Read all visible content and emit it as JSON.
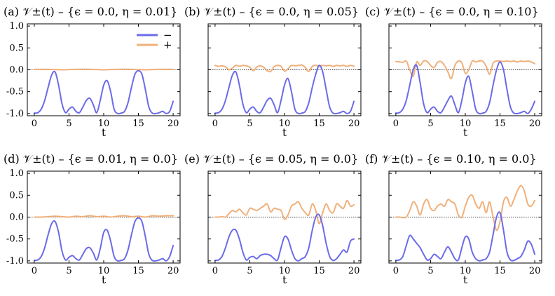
{
  "figure": {
    "colors": {
      "minus": "#6b6bea",
      "plus": "#f0b07a",
      "zero_line": "#000000"
    },
    "legend": {
      "panel": 0,
      "location": "top-right",
      "entries": [
        "−",
        "+"
      ]
    }
  },
  "chart_data": [
    {
      "type": "line",
      "panel_label": "(a)",
      "title": "(a) 𝒱±(t)  –  {ϵ = 0.0, η = 0.01}",
      "xlabel": "t",
      "xlim": [
        -1,
        21
      ],
      "ylim": [
        -1.05,
        1.05
      ],
      "xticks": [
        "0",
        "5",
        "10",
        "15",
        "20"
      ],
      "yticks": [
        "1.0",
        "0.5",
        "0.0",
        "-0.5",
        "-1.0"
      ],
      "grid": false,
      "reference_line": 0,
      "series": [
        {
          "name": "−",
          "x": [
            0,
            0.5,
            1,
            1.5,
            2,
            2.5,
            3,
            3.5,
            4,
            4.5,
            5,
            5.5,
            6,
            6.5,
            7,
            7.5,
            8,
            8.5,
            9,
            9.5,
            10,
            10.5,
            11,
            11.5,
            12,
            12.5,
            13,
            13.5,
            14,
            14.5,
            15,
            15.5,
            16,
            16.5,
            17,
            17.5,
            18,
            18.5,
            19,
            19.5,
            20
          ],
          "values": [
            -0.99,
            -0.98,
            -0.9,
            -0.7,
            -0.4,
            -0.12,
            -0.05,
            -0.35,
            -0.78,
            -0.98,
            -0.9,
            -0.85,
            -0.95,
            -0.98,
            -0.85,
            -0.7,
            -0.65,
            -0.8,
            -0.98,
            -0.7,
            -0.35,
            -0.25,
            -0.5,
            -0.9,
            -1.0,
            -0.99,
            -0.95,
            -0.75,
            -0.4,
            -0.1,
            -0.02,
            -0.1,
            -0.45,
            -0.85,
            -0.99,
            -1.0,
            -0.98,
            -0.95,
            -1.0,
            -0.95,
            -0.72
          ]
        },
        {
          "name": "+",
          "x": [
            0,
            2,
            4,
            6,
            8,
            10,
            12,
            14,
            16,
            18,
            20
          ],
          "values": [
            0.01,
            0.01,
            0.0,
            0.01,
            0.01,
            0.0,
            0.01,
            0.01,
            0.0,
            0.01,
            0.01
          ]
        }
      ]
    },
    {
      "type": "line",
      "panel_label": "(b)",
      "title": "(b) 𝒱±(t)  –  {ϵ = 0.0, η = 0.05}",
      "xlabel": "t",
      "xlim": [
        -1,
        21
      ],
      "ylim": [
        -1.05,
        1.05
      ],
      "xticks": [
        "0",
        "5",
        "10",
        "15",
        "20"
      ],
      "yticks": [],
      "grid": false,
      "reference_line": 0,
      "series": [
        {
          "name": "−",
          "x": [
            0,
            0.5,
            1,
            1.5,
            2,
            2.5,
            3,
            3.5,
            4,
            4.5,
            5,
            5.5,
            6,
            6.5,
            7,
            7.5,
            8,
            8.5,
            9,
            9.5,
            10,
            10.5,
            11,
            11.5,
            12,
            12.5,
            13,
            13.5,
            14,
            14.5,
            15,
            15.5,
            16,
            16.5,
            17,
            17.5,
            18,
            18.5,
            19,
            19.5,
            20
          ],
          "values": [
            -0.99,
            -0.98,
            -0.9,
            -0.7,
            -0.4,
            -0.12,
            -0.05,
            -0.35,
            -0.78,
            -0.98,
            -0.9,
            -0.85,
            -0.95,
            -0.98,
            -0.85,
            -0.7,
            -0.65,
            -0.8,
            -0.98,
            -0.7,
            -0.35,
            -0.2,
            -0.5,
            -0.9,
            -1.0,
            -0.99,
            -0.95,
            -0.75,
            -0.4,
            -0.1,
            0.1,
            -0.05,
            -0.45,
            -0.85,
            -0.99,
            -1.0,
            -0.98,
            -0.95,
            -1.0,
            -0.95,
            -0.72
          ]
        },
        {
          "name": "+",
          "x": [
            0,
            0.5,
            1,
            1.5,
            2,
            2.5,
            3,
            3.5,
            4,
            4.5,
            5,
            5.5,
            6,
            6.5,
            7,
            7.5,
            8,
            8.5,
            9,
            9.5,
            10,
            10.5,
            11,
            11.5,
            12,
            12.5,
            13,
            13.5,
            14,
            14.5,
            15,
            15.5,
            16,
            16.5,
            17,
            17.5,
            18,
            18.5,
            19,
            19.5,
            20
          ],
          "values": [
            0.1,
            0.08,
            0.09,
            0.07,
            0.0,
            0.04,
            0.1,
            0.08,
            0.1,
            0.09,
            0.06,
            -0.02,
            0.06,
            0.09,
            0.06,
            -0.02,
            -0.04,
            0.07,
            0.1,
            0.08,
            -0.03,
            0.02,
            0.1,
            0.09,
            0.1,
            0.11,
            0.05,
            -0.04,
            0.08,
            0.1,
            0.09,
            0.1,
            0.09,
            0.1,
            0.08,
            0.1,
            0.09,
            0.1,
            0.08,
            0.1,
            0.08
          ]
        }
      ]
    },
    {
      "type": "line",
      "panel_label": "(c)",
      "title": "(c) 𝒱±(t)  –  {ϵ = 0.0, η = 0.10}",
      "xlabel": "t",
      "xlim": [
        -1,
        21
      ],
      "ylim": [
        -1.05,
        1.05
      ],
      "xticks": [
        "0",
        "5",
        "10",
        "15",
        "20"
      ],
      "yticks": [],
      "grid": false,
      "reference_line": 0,
      "series": [
        {
          "name": "−",
          "x": [
            0,
            0.5,
            1,
            1.5,
            2,
            2.5,
            3,
            3.5,
            4,
            4.5,
            5,
            5.5,
            6,
            6.5,
            7,
            7.5,
            8,
            8.5,
            9,
            9.5,
            10,
            10.5,
            11,
            11.5,
            12,
            12.5,
            13,
            13.5,
            14,
            14.5,
            15,
            15.5,
            16,
            16.5,
            17,
            17.5,
            18,
            18.5,
            19,
            19.5,
            20
          ],
          "values": [
            -0.99,
            -0.98,
            -0.9,
            -0.7,
            -0.35,
            0.0,
            0.1,
            -0.3,
            -0.78,
            -0.98,
            -0.9,
            -0.85,
            -0.95,
            -0.98,
            -0.85,
            -0.7,
            -0.6,
            -0.8,
            -0.98,
            -0.7,
            -0.3,
            -0.15,
            -0.5,
            -0.9,
            -1.0,
            -0.99,
            -0.95,
            -0.75,
            -0.35,
            0.0,
            0.18,
            0.0,
            -0.45,
            -0.85,
            -0.99,
            -1.0,
            -0.98,
            -0.95,
            -1.0,
            -0.9,
            -0.72
          ]
        },
        {
          "name": "+",
          "x": [
            0,
            0.5,
            1,
            1.5,
            2,
            2.5,
            3,
            3.5,
            4,
            4.5,
            5,
            5.5,
            6,
            6.5,
            7,
            7.5,
            8,
            8.5,
            9,
            9.5,
            10,
            10.5,
            11,
            11.5,
            12,
            12.5,
            13,
            13.5,
            14,
            14.5,
            15,
            15.5,
            16,
            16.5,
            17,
            17.5,
            18,
            18.5,
            19,
            19.5,
            20
          ],
          "values": [
            0.19,
            0.18,
            0.17,
            0.2,
            0.0,
            -0.15,
            0.18,
            0.1,
            0.2,
            0.19,
            0.1,
            0.05,
            0.17,
            0.19,
            0.1,
            -0.05,
            -0.2,
            0.1,
            0.2,
            0.16,
            -0.08,
            0.0,
            0.2,
            0.18,
            0.2,
            0.2,
            0.08,
            -0.1,
            0.15,
            0.2,
            0.2,
            0.19,
            0.2,
            0.19,
            0.2,
            0.18,
            0.2,
            0.19,
            0.2,
            0.18,
            0.14
          ]
        }
      ]
    },
    {
      "type": "line",
      "panel_label": "(d)",
      "title": "(d) 𝒱±(t)  –  {ϵ = 0.01, η = 0.0}",
      "xlabel": "t",
      "xlim": [
        -1,
        21
      ],
      "ylim": [
        -1.05,
        1.05
      ],
      "xticks": [
        "0",
        "5",
        "10",
        "15",
        "20"
      ],
      "yticks": [
        "1.0",
        "0.5",
        "0.0",
        "-0.5",
        "-1.0"
      ],
      "grid": false,
      "reference_line": 0,
      "series": [
        {
          "name": "−",
          "x": [
            0,
            0.5,
            1,
            1.5,
            2,
            2.5,
            3,
            3.5,
            4,
            4.5,
            5,
            5.5,
            6,
            6.5,
            7,
            7.5,
            8,
            8.5,
            9,
            9.5,
            10,
            10.5,
            11,
            11.5,
            12,
            12.5,
            13,
            13.5,
            14,
            14.5,
            15,
            15.5,
            16,
            16.5,
            17,
            17.5,
            18,
            18.5,
            19,
            19.5,
            20
          ],
          "values": [
            -0.99,
            -0.98,
            -0.9,
            -0.7,
            -0.4,
            -0.15,
            -0.1,
            -0.35,
            -0.78,
            -0.98,
            -0.92,
            -0.88,
            -0.95,
            -0.98,
            -0.85,
            -0.72,
            -0.7,
            -0.82,
            -0.98,
            -0.72,
            -0.35,
            -0.3,
            -0.55,
            -0.9,
            -1.0,
            -0.99,
            -0.95,
            -0.75,
            -0.4,
            -0.1,
            -0.02,
            -0.1,
            -0.45,
            -0.85,
            -0.99,
            -1.0,
            -0.98,
            -0.95,
            -1.0,
            -0.9,
            -0.65
          ]
        },
        {
          "name": "+",
          "x": [
            0,
            1,
            2,
            3,
            4,
            5,
            6,
            7,
            8,
            9,
            10,
            11,
            12,
            13,
            14,
            15,
            16,
            17,
            18,
            19,
            20
          ],
          "values": [
            0.0,
            0.0,
            0.01,
            0.02,
            0.01,
            0.0,
            0.02,
            0.01,
            0.03,
            0.01,
            0.02,
            0.0,
            0.02,
            0.03,
            0.01,
            0.02,
            0.0,
            0.03,
            0.02,
            0.03,
            0.03
          ]
        }
      ]
    },
    {
      "type": "line",
      "panel_label": "(e)",
      "title": "(e) 𝒱±(t)  –  {ϵ = 0.05, η = 0.0}",
      "xlabel": "t",
      "xlim": [
        -1,
        21
      ],
      "ylim": [
        -1.05,
        1.05
      ],
      "xticks": [
        "0",
        "5",
        "10",
        "15",
        "20"
      ],
      "yticks": [],
      "grid": false,
      "reference_line": 0,
      "series": [
        {
          "name": "−",
          "x": [
            0,
            0.5,
            1,
            1.5,
            2,
            2.5,
            3,
            3.5,
            4,
            4.5,
            5,
            5.5,
            6,
            6.5,
            7,
            7.5,
            8,
            8.5,
            9,
            9.5,
            10,
            10.5,
            11,
            11.5,
            12,
            12.5,
            13,
            13.5,
            14,
            14.5,
            15,
            15.5,
            16,
            16.5,
            17,
            17.5,
            18,
            18.5,
            19,
            19.5,
            20
          ],
          "values": [
            -0.99,
            -0.98,
            -0.9,
            -0.7,
            -0.45,
            -0.3,
            -0.3,
            -0.5,
            -0.8,
            -0.98,
            -0.92,
            -0.9,
            -0.95,
            -0.88,
            -0.85,
            -0.85,
            -0.88,
            -0.95,
            -0.98,
            -0.7,
            -0.45,
            -0.5,
            -0.75,
            -0.95,
            -1.0,
            -0.95,
            -0.9,
            -0.7,
            -0.3,
            0.0,
            0.05,
            -0.2,
            -0.6,
            -0.9,
            -0.99,
            -0.95,
            -0.85,
            -0.75,
            -0.8,
            -0.55,
            -0.5
          ]
        },
        {
          "name": "+",
          "x": [
            0,
            0.5,
            1,
            1.5,
            2,
            2.5,
            3,
            3.5,
            4,
            4.5,
            5,
            5.5,
            6,
            6.5,
            7,
            7.5,
            8,
            8.5,
            9,
            9.5,
            10,
            10.5,
            11,
            11.5,
            12,
            12.5,
            13,
            13.5,
            14,
            14.5,
            15,
            15.5,
            16,
            16.5,
            17,
            17.5,
            18,
            18.5,
            19,
            19.5,
            20
          ],
          "values": [
            0.0,
            0.0,
            0.01,
            0.0,
            0.08,
            0.15,
            0.12,
            0.18,
            0.1,
            0.05,
            0.2,
            0.18,
            0.15,
            0.2,
            0.25,
            0.3,
            0.12,
            0.2,
            0.18,
            0.15,
            -0.05,
            0.05,
            0.25,
            0.3,
            0.35,
            0.2,
            0.1,
            0.05,
            0.3,
            0.15,
            -0.15,
            0.1,
            0.3,
            0.15,
            0.1,
            0.3,
            0.25,
            0.2,
            0.38,
            0.25,
            0.28
          ]
        }
      ]
    },
    {
      "type": "line",
      "panel_label": "(f)",
      "title": "(f) 𝒱±(t)  –  {ϵ = 0.10, η = 0.0}",
      "xlabel": "t",
      "xlim": [
        -1,
        21
      ],
      "ylim": [
        -1.05,
        1.05
      ],
      "xticks": [
        "0",
        "5",
        "10",
        "15",
        "20"
      ],
      "yticks": [],
      "grid": false,
      "reference_line": 0,
      "series": [
        {
          "name": "−",
          "x": [
            0,
            0.5,
            1,
            1.5,
            2,
            2.5,
            3,
            3.5,
            4,
            4.5,
            5,
            5.5,
            6,
            6.5,
            7,
            7.5,
            8,
            8.5,
            9,
            9.5,
            10,
            10.5,
            11,
            11.5,
            12,
            12.5,
            13,
            13.5,
            14,
            14.5,
            15,
            15.5,
            16,
            16.5,
            17,
            17.5,
            18,
            18.5,
            19,
            19.5,
            20
          ],
          "values": [
            -0.99,
            -0.98,
            -0.9,
            -0.65,
            -0.42,
            -0.5,
            -0.6,
            -0.7,
            -0.85,
            -0.98,
            -0.95,
            -0.85,
            -0.9,
            -0.95,
            -0.8,
            -0.68,
            -0.8,
            -0.95,
            -0.98,
            -0.7,
            -0.45,
            -0.5,
            -0.8,
            -0.95,
            -1.0,
            -0.98,
            -0.95,
            -0.8,
            -0.4,
            0.0,
            0.1,
            -0.3,
            -0.8,
            -0.98,
            -0.99,
            -0.95,
            -0.9,
            -0.75,
            -0.55,
            -0.62,
            -0.85
          ]
        },
        {
          "name": "+",
          "x": [
            0,
            0.5,
            1,
            1.5,
            2,
            2.5,
            3,
            3.5,
            4,
            4.5,
            5,
            5.5,
            6,
            6.5,
            7,
            7.5,
            8,
            8.5,
            9,
            9.5,
            10,
            10.5,
            11,
            11.5,
            12,
            12.5,
            13,
            13.5,
            14,
            14.5,
            15,
            15.5,
            16,
            16.5,
            17,
            17.5,
            18,
            18.5,
            19,
            19.5,
            20
          ],
          "values": [
            0.0,
            0.0,
            -0.01,
            0.0,
            0.15,
            0.35,
            0.25,
            0.05,
            0.3,
            0.4,
            0.2,
            0.15,
            0.25,
            0.3,
            0.25,
            0.4,
            0.35,
            0.3,
            0.05,
            0.0,
            0.25,
            0.45,
            0.5,
            0.3,
            0.2,
            0.35,
            0.1,
            0.35,
            0.0,
            -0.3,
            -0.1,
            0.35,
            0.45,
            0.25,
            0.4,
            0.6,
            0.72,
            0.6,
            0.3,
            0.25,
            0.38
          ]
        }
      ]
    }
  ]
}
